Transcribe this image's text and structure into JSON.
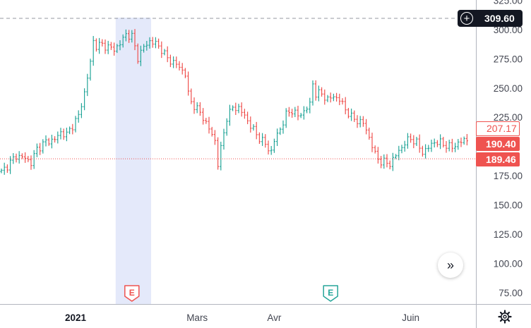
{
  "chart_data": {
    "type": "ohlc",
    "y_axis": {
      "position": "right",
      "ticks": [
        "325.00",
        "300.00",
        "275.00",
        "250.00",
        "225.00",
        "175.00",
        "150.00",
        "125.00",
        "100.00",
        "75.00"
      ],
      "range": [
        65,
        328
      ]
    },
    "x_axis": {
      "ticks": [
        {
          "label": "2021",
          "bold": true,
          "index": 25
        },
        {
          "label": "Mars",
          "bold": false,
          "index": 66
        },
        {
          "label": "Avr",
          "bold": false,
          "index": 92
        },
        {
          "label": "Juin",
          "bold": false,
          "index": 138
        }
      ],
      "count": 158
    },
    "earnings_markers": [
      {
        "label": "E",
        "index": 44,
        "color": "#ef5350"
      },
      {
        "label": "E",
        "index": 111,
        "color": "#26a69a"
      }
    ],
    "highlight_range": {
      "from_index": 39,
      "to_index": 50,
      "color": "#e4e9fa"
    },
    "reference_lines": [
      {
        "value": 309.6,
        "style": "dashed",
        "color": "#9598a1"
      },
      {
        "value": 189.46,
        "style": "dotted",
        "color": "#ef5350"
      }
    ],
    "up_color": "#26a69a",
    "down_color": "#ef5350",
    "anchors": [
      [
        0,
        178
      ],
      [
        5,
        192
      ],
      [
        8,
        190
      ],
      [
        10,
        186
      ],
      [
        12,
        198
      ],
      [
        15,
        204
      ],
      [
        18,
        206
      ],
      [
        20,
        212
      ],
      [
        22,
        210
      ],
      [
        24,
        218
      ],
      [
        26,
        226
      ],
      [
        28,
        246
      ],
      [
        30,
        272
      ],
      [
        31,
        290
      ],
      [
        32,
        286
      ],
      [
        34,
        287
      ],
      [
        36,
        285
      ],
      [
        38,
        283
      ],
      [
        40,
        288
      ],
      [
        42,
        296
      ],
      [
        44,
        294
      ],
      [
        46,
        276
      ],
      [
        48,
        285
      ],
      [
        50,
        290
      ],
      [
        52,
        288
      ],
      [
        54,
        283
      ],
      [
        56,
        275
      ],
      [
        58,
        272
      ],
      [
        60,
        268
      ],
      [
        62,
        262
      ],
      [
        63,
        245
      ],
      [
        64,
        238
      ],
      [
        66,
        232
      ],
      [
        68,
        225
      ],
      [
        70,
        215
      ],
      [
        72,
        205
      ],
      [
        73,
        185
      ],
      [
        74,
        198
      ],
      [
        76,
        225
      ],
      [
        78,
        233
      ],
      [
        80,
        233
      ],
      [
        82,
        226
      ],
      [
        84,
        218
      ],
      [
        86,
        210
      ],
      [
        88,
        205
      ],
      [
        90,
        198
      ],
      [
        91,
        196
      ],
      [
        92,
        205
      ],
      [
        94,
        215
      ],
      [
        96,
        227
      ],
      [
        98,
        231
      ],
      [
        100,
        226
      ],
      [
        102,
        230
      ],
      [
        104,
        236
      ],
      [
        105,
        254
      ],
      [
        106,
        245
      ],
      [
        108,
        245
      ],
      [
        110,
        240
      ],
      [
        112,
        243
      ],
      [
        114,
        240
      ],
      [
        116,
        232
      ],
      [
        118,
        225
      ],
      [
        120,
        222
      ],
      [
        122,
        220
      ],
      [
        124,
        208
      ],
      [
        126,
        193
      ],
      [
        128,
        187
      ],
      [
        130,
        186
      ],
      [
        131,
        185
      ],
      [
        132,
        189
      ],
      [
        134,
        196
      ],
      [
        136,
        203
      ],
      [
        138,
        207
      ],
      [
        140,
        203
      ],
      [
        142,
        195
      ],
      [
        144,
        199
      ],
      [
        146,
        204
      ],
      [
        148,
        203
      ],
      [
        150,
        201
      ],
      [
        152,
        199
      ],
      [
        154,
        203
      ],
      [
        156,
        205
      ],
      [
        157,
        206
      ]
    ]
  },
  "price_labels": {
    "top": "309.60",
    "line_207": "207.17",
    "line_190": "190.40",
    "line_189": "189.46"
  },
  "buttons": {
    "scroll_right": "»",
    "settings_icon": "gear-icon",
    "add_alert_icon": "plus-circle-icon"
  }
}
